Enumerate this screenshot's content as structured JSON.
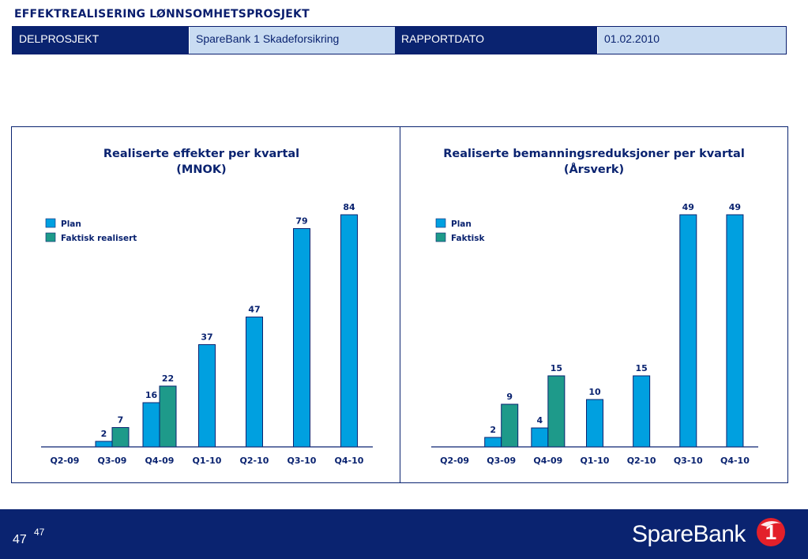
{
  "page": {
    "title": "EFFEKTREALISERING LØNNSOMHETSPROSJEKT"
  },
  "header": {
    "delprosjekt_label": "DELPROSJEKT",
    "delprosjekt_value": "SpareBank 1 Skadeforsikring",
    "rapportdato_label": "RAPPORTDATO",
    "rapportdato_value": "01.02.2010"
  },
  "colors": {
    "navy": "#0a2370",
    "plan": "#00a0e0",
    "faktisk": "#1e9a8a"
  },
  "chart_data": [
    {
      "type": "bar",
      "title": "Realiserte effekter per kvartal",
      "subtitle": "(MNOK)",
      "categories": [
        "Q2-09",
        "Q3-09",
        "Q4-09",
        "Q1-10",
        "Q2-10",
        "Q3-10",
        "Q4-10"
      ],
      "series": [
        {
          "name": "Plan",
          "values": [
            null,
            2,
            16,
            37,
            47,
            79,
            84
          ]
        },
        {
          "name": "Faktisk realisert",
          "values": [
            null,
            7,
            22,
            null,
            null,
            null,
            null
          ]
        }
      ],
      "ylim": [
        0,
        84
      ],
      "legend_position": "top-left",
      "grid": false
    },
    {
      "type": "bar",
      "title": "Realiserte bemanningsreduksjoner per kvartal",
      "subtitle": "(Årsverk)",
      "categories": [
        "Q2-09",
        "Q3-09",
        "Q4-09",
        "Q1-10",
        "Q2-10",
        "Q3-10",
        "Q4-10"
      ],
      "series": [
        {
          "name": "Plan",
          "values": [
            null,
            2,
            4,
            10,
            15,
            49,
            49
          ]
        },
        {
          "name": "Faktisk",
          "values": [
            null,
            9,
            15,
            null,
            null,
            null,
            null
          ]
        }
      ],
      "ylim": [
        0,
        49
      ],
      "legend_position": "top-left",
      "grid": false
    }
  ],
  "footer": {
    "page_number": "47",
    "page_number_sup": "47",
    "logo_text": "SpareBank",
    "logo_mark": "1"
  }
}
